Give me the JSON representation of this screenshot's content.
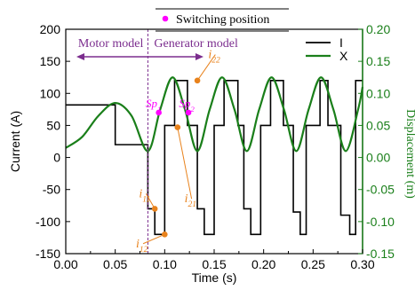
{
  "chart_data": {
    "type": "line",
    "xlabel": "Time (s)",
    "ylabel": "Current (A)",
    "y2label": "Displacement (m)",
    "xlim": [
      0.0,
      0.3
    ],
    "ylim": [
      -150,
      200
    ],
    "y2lim": [
      -0.15,
      0.2
    ],
    "x_ticks": [
      "0.00",
      "0.05",
      "0.10",
      "0.15",
      "0.20",
      "0.25",
      "0.30"
    ],
    "y_ticks": [
      "-150",
      "-100",
      "-50",
      "0",
      "50",
      "100",
      "150",
      "200"
    ],
    "y2_ticks": [
      "-0.15",
      "-0.10",
      "-0.05",
      "0.00",
      "0.05",
      "0.10",
      "0.15",
      "0.20"
    ],
    "legend": [
      {
        "name": "I",
        "color": "#000000"
      },
      {
        "name": "X",
        "color": "#1a7f1a"
      }
    ],
    "switch_legend": "Switching position",
    "region_labels": {
      "motor": "Motor model",
      "generator": "Generator model"
    },
    "mode_boundary_x": 0.083,
    "series": [
      {
        "name": "I",
        "axis": "left",
        "color": "#000000",
        "x": [
          0.0,
          0.05,
          0.05,
          0.083,
          0.083,
          0.09,
          0.09,
          0.1,
          0.1,
          0.11,
          0.11,
          0.123,
          0.123,
          0.133,
          0.133,
          0.14,
          0.14,
          0.15,
          0.15,
          0.16,
          0.16,
          0.174,
          0.174,
          0.18,
          0.18,
          0.187,
          0.187,
          0.197,
          0.197,
          0.207,
          0.207,
          0.22,
          0.22,
          0.23,
          0.23,
          0.237,
          0.237,
          0.243,
          0.243,
          0.257,
          0.257,
          0.265,
          0.265,
          0.278,
          0.278,
          0.287,
          0.287,
          0.293,
          0.293,
          0.3
        ],
        "values": [
          82,
          82,
          20,
          20,
          -80,
          -80,
          -120,
          -120,
          50,
          50,
          120,
          120,
          50,
          50,
          -80,
          -80,
          -120,
          -120,
          50,
          50,
          120,
          120,
          50,
          50,
          -80,
          -80,
          -120,
          -120,
          50,
          50,
          120,
          120,
          50,
          50,
          -85,
          -85,
          -120,
          -120,
          50,
          50,
          120,
          120,
          50,
          50,
          -90,
          -90,
          -120,
          -120,
          120,
          120
        ]
      },
      {
        "name": "X",
        "axis": "right",
        "color": "#1a7f1a",
        "x": [
          0.0,
          0.0165,
          0.033,
          0.05,
          0.0665,
          0.083,
          0.0955,
          0.108,
          0.1205,
          0.133,
          0.1455,
          0.158,
          0.1705,
          0.183,
          0.1955,
          0.208,
          0.2205,
          0.233,
          0.2455,
          0.258,
          0.2705,
          0.283,
          0.2955,
          0.3
        ],
        "values": [
          0.015,
          0.032,
          0.065,
          0.085,
          0.065,
          0.01,
          0.075,
          0.125,
          0.075,
          0.01,
          0.075,
          0.125,
          0.075,
          0.01,
          0.075,
          0.125,
          0.075,
          0.01,
          0.075,
          0.125,
          0.075,
          0.01,
          0.075,
          0.11
        ]
      }
    ],
    "switching_points": [
      {
        "label": "Sp1",
        "main": "Sp",
        "sub": "1",
        "x": 0.094,
        "y": 0.07
      },
      {
        "label": "Sp2",
        "main": "Sp",
        "sub": "2",
        "x": 0.124,
        "y": 0.07
      }
    ],
    "current_points": [
      {
        "label": "i11",
        "main": "i",
        "sub": "11",
        "x": 0.09,
        "y": -80,
        "text_x": 0.074,
        "text_y": -62
      },
      {
        "label": "i12",
        "main": "i",
        "sub": "12",
        "x": 0.1,
        "y": -120,
        "text_x": 0.071,
        "text_y": -140
      },
      {
        "label": "i21",
        "main": "i",
        "sub": "21",
        "x": 0.113,
        "y": 47,
        "text_x": 0.12,
        "text_y": -70
      },
      {
        "label": "i22",
        "main": "i",
        "sub": "22",
        "x": 0.133,
        "y": 120,
        "text_x": 0.144,
        "text_y": 155
      }
    ],
    "colors": {
      "current": "#000000",
      "displacement": "#1a7f1a",
      "switch_marker": "#ff00ff",
      "annotation": "#e8821c",
      "region": "#7b2d8e",
      "right_axis": "#1a7f1a"
    },
    "grid": false
  }
}
